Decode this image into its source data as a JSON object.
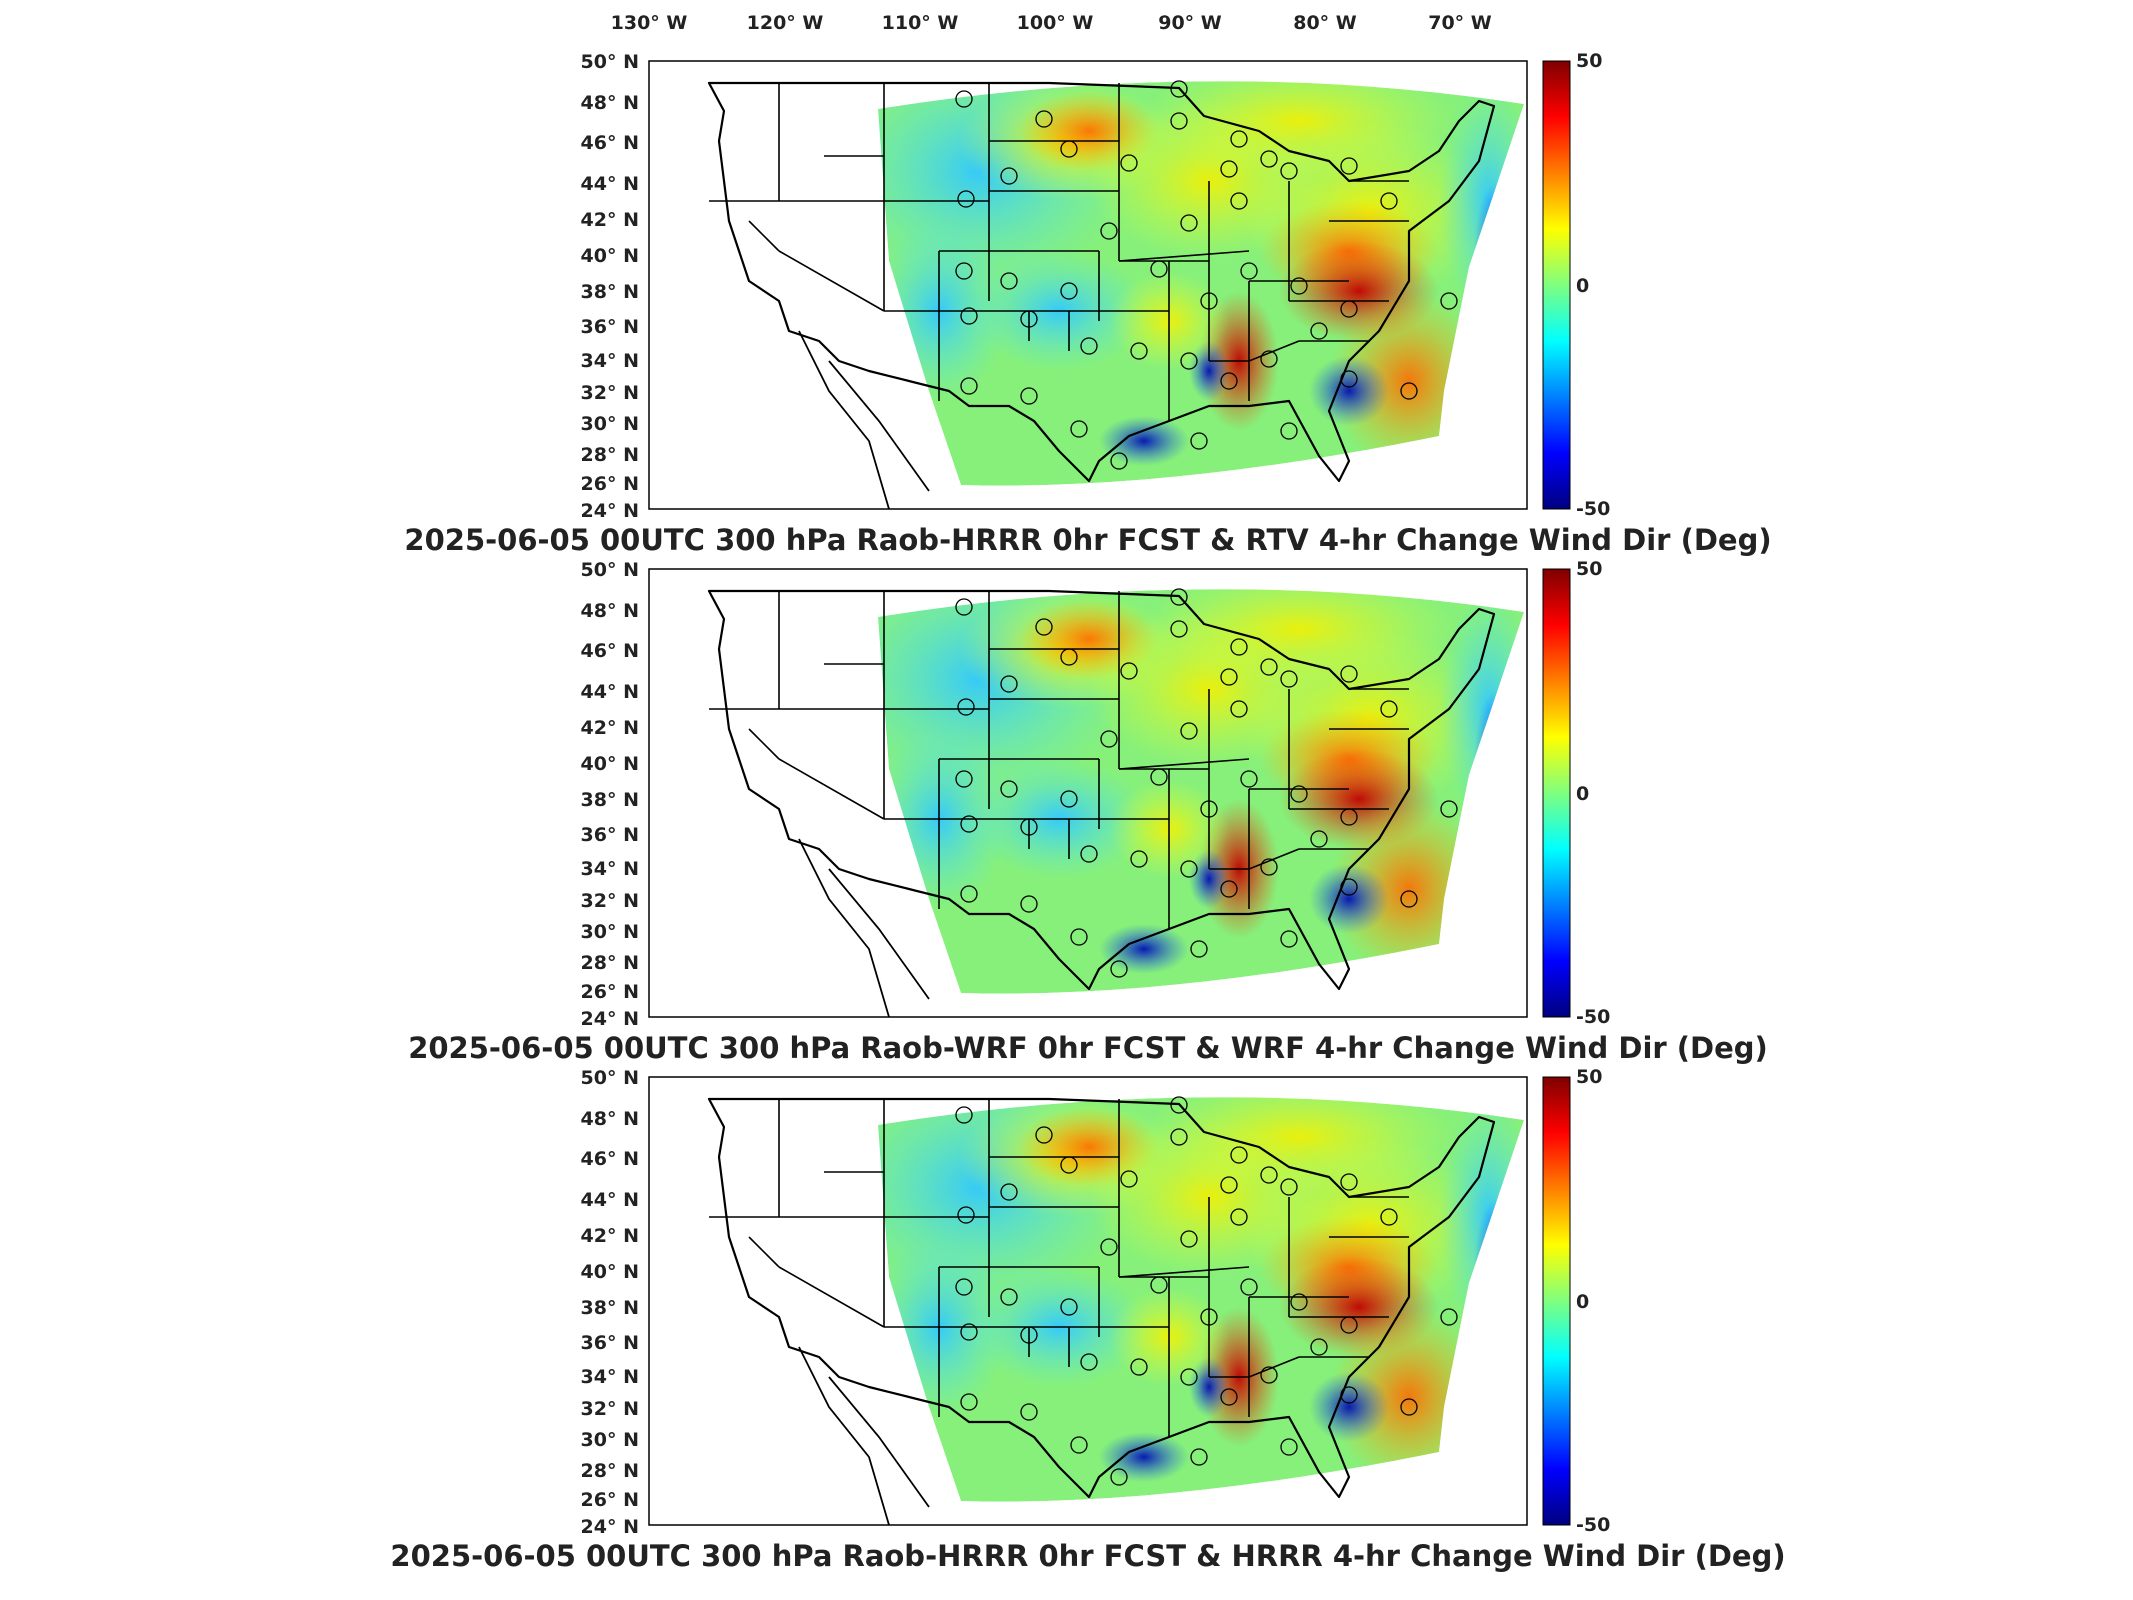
{
  "figure": {
    "longitude_ticks": [
      "130° W",
      "120° W",
      "110° W",
      "100° W",
      "90° W",
      "80° W",
      "70° W"
    ],
    "latitude_ticks": [
      "50° N",
      "48° N",
      "46° N",
      "44° N",
      "42° N",
      "40° N",
      "38° N",
      "36° N",
      "34° N",
      "32° N",
      "30° N",
      "28° N",
      "26° N",
      "24° N"
    ],
    "panels": [
      {
        "title": "2025-06-05 00UTC 300 hPa Raob-HRRR 0hr FCST & RTV 4-hr Change Wind Dir (Deg)",
        "colorbar": {
          "max_label": "50",
          "mid_label": "0",
          "min_label": "-50"
        }
      },
      {
        "title": "2025-06-05 00UTC 300 hPa Raob-WRF 0hr FCST & WRF 4-hr Change Wind Dir (Deg)",
        "colorbar": {
          "max_label": "50",
          "mid_label": "0",
          "min_label": "-50"
        }
      },
      {
        "title": "2025-06-05 00UTC 300 hPa Raob-HRRR 0hr FCST & HRRR 4-hr Change Wind Dir (Deg)",
        "colorbar": {
          "max_label": "50",
          "mid_label": "0",
          "min_label": "-50"
        }
      }
    ],
    "colormap": [
      "#00007f",
      "#0000ff",
      "#007fff",
      "#00ffff",
      "#7fff7f",
      "#ffff00",
      "#ff7f00",
      "#ff0000",
      "#7f0000"
    ]
  }
}
